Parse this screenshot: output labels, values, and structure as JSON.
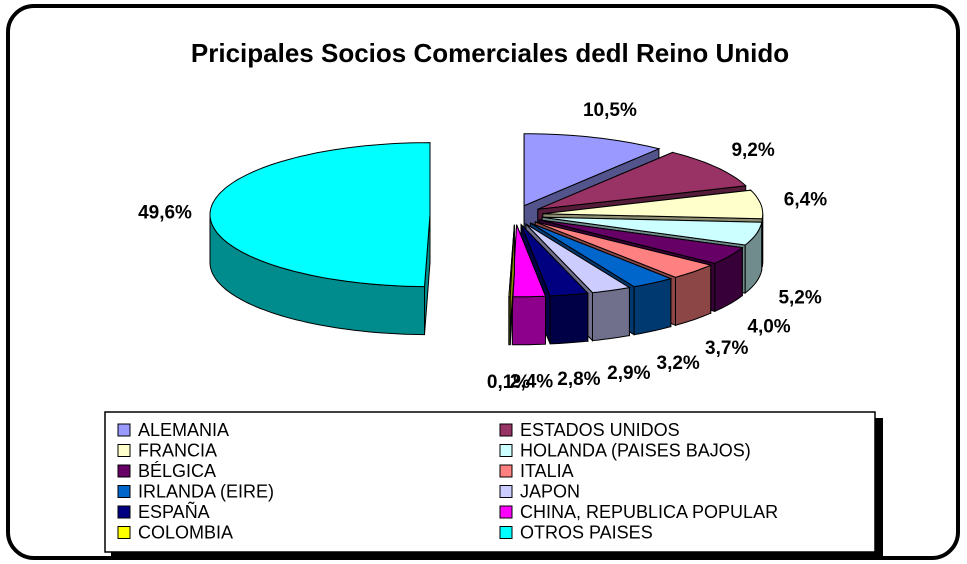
{
  "chart_data": {
    "type": "pie",
    "title": "Pricipales Socios Comerciales dedl Reino Unido",
    "categories": [
      "ALEMANIA",
      "ESTADOS UNIDOS",
      "FRANCIA",
      "HOLANDA (PAISES BAJOS)",
      "BÉLGICA",
      "ITALIA",
      "IRLANDA (EIRE)",
      "JAPON",
      "ESPAÑA",
      "CHINA, REPUBLICA POPULAR",
      "COLOMBIA",
      "OTROS PAISES"
    ],
    "values": [
      10.5,
      9.2,
      6.4,
      5.2,
      4.0,
      3.7,
      3.2,
      2.9,
      2.8,
      2.4,
      0.1,
      49.6
    ],
    "value_labels": [
      "10,5%",
      "9,2%",
      "6,4%",
      "5,2%",
      "4,0%",
      "3,7%",
      "3,2%",
      "2,9%",
      "2,8%",
      "2,4%",
      "0,1%",
      "49,6%"
    ],
    "colors": [
      "#9999ff",
      "#993366",
      "#ffffcc",
      "#ccffff",
      "#660066",
      "#ff8080",
      "#0066cc",
      "#ccccff",
      "#000080",
      "#ff00ff",
      "#ffff00",
      "#00ffff"
    ]
  }
}
